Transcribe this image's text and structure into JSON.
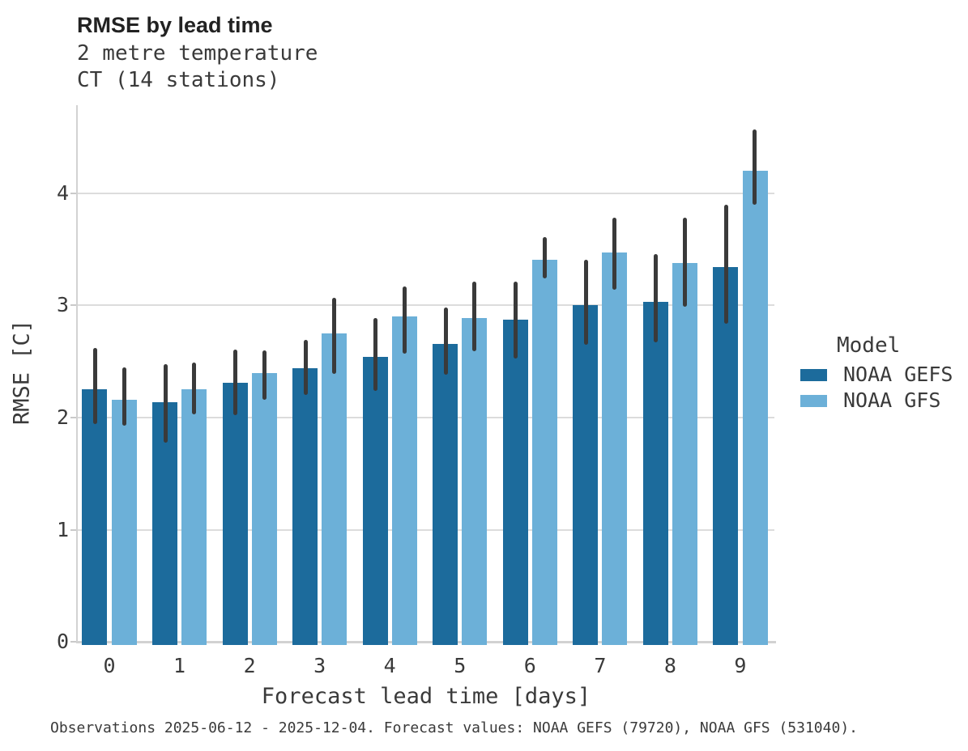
{
  "header": {
    "title": "RMSE by lead time",
    "subtitle_line1": "2 metre temperature",
    "subtitle_line2": "CT (14 stations)"
  },
  "legend": {
    "title": "Model",
    "items": [
      {
        "label": "NOAA GEFS",
        "color": "#1c6b9c"
      },
      {
        "label": "NOAA GFS",
        "color": "#6cb0d8"
      }
    ]
  },
  "caption": "Observations 2025-06-12 - 2025-12-04. Forecast values: NOAA GEFS (79720), NOAA GFS (531040).",
  "colors": {
    "bar_dark": "#1c6b9c",
    "bar_light": "#6cb0d8",
    "error_bar": "#3a3a3a",
    "gridline": "#dcdcdc",
    "axis_line": "#d2d2d2",
    "tick": "#c9c9c9",
    "text": "#3a3a3a"
  },
  "chart_data": {
    "type": "bar",
    "title": "RMSE by lead time",
    "subtitle": [
      "2 metre temperature",
      "CT (14 stations)"
    ],
    "xlabel": "Forecast lead time [days]",
    "ylabel": "RMSE [C]",
    "categories": [
      0,
      1,
      2,
      3,
      4,
      5,
      6,
      7,
      8,
      9
    ],
    "yticks": [
      0,
      1,
      2,
      3,
      4
    ],
    "ylim": [
      0,
      4.785
    ],
    "grid": true,
    "legend_title": "Model",
    "legend_position": "right",
    "error_bars": true,
    "series": [
      {
        "name": "NOAA GEFS",
        "color": "#1c6b9c",
        "values": [
          2.25,
          2.14,
          2.31,
          2.44,
          2.54,
          2.66,
          2.87,
          3.0,
          3.03,
          3.34
        ],
        "error_low": [
          1.94,
          1.78,
          2.02,
          2.2,
          2.24,
          2.38,
          2.53,
          2.65,
          2.67,
          2.84
        ],
        "error_high": [
          2.62,
          2.48,
          2.61,
          2.69,
          2.89,
          2.98,
          3.21,
          3.41,
          3.46,
          3.9
        ]
      },
      {
        "name": "NOAA GFS",
        "color": "#6cb0d8",
        "values": [
          2.16,
          2.25,
          2.4,
          2.75,
          2.9,
          2.89,
          3.41,
          3.47,
          3.38,
          4.2
        ],
        "error_low": [
          1.93,
          2.03,
          2.16,
          2.39,
          2.57,
          2.59,
          3.24,
          3.14,
          2.99,
          3.9
        ],
        "error_high": [
          2.45,
          2.49,
          2.6,
          3.07,
          3.17,
          3.21,
          3.61,
          3.78,
          3.78,
          4.57
        ]
      }
    ]
  }
}
